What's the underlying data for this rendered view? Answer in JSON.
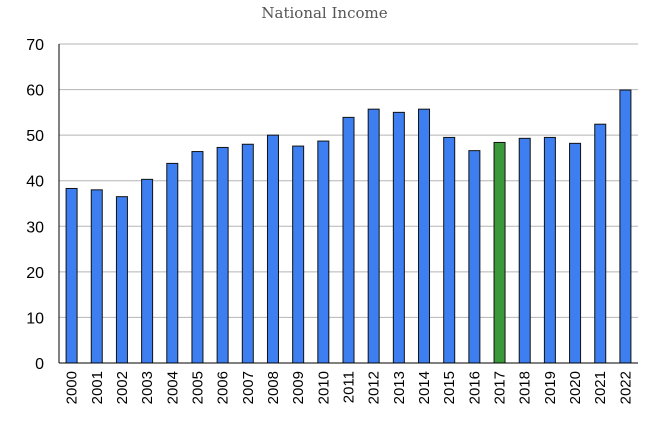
{
  "chart_data": {
    "type": "bar",
    "title": "National Income",
    "xlabel": "",
    "ylabel": "",
    "categories": [
      "2000",
      "2001",
      "2002",
      "2003",
      "2004",
      "2005",
      "2006",
      "2007",
      "2008",
      "2009",
      "2010",
      "2011",
      "2012",
      "2013",
      "2014",
      "2015",
      "2016",
      "2017",
      "2018",
      "2019",
      "2020",
      "2021",
      "2022"
    ],
    "values": [
      38.3,
      38.0,
      36.5,
      40.3,
      43.8,
      46.4,
      47.3,
      48.0,
      50.0,
      47.6,
      48.7,
      53.9,
      55.7,
      55.0,
      55.7,
      49.5,
      46.6,
      48.4,
      49.3,
      49.5,
      48.2,
      52.4,
      59.9
    ],
    "ylim": [
      0,
      70
    ],
    "yticks": [
      0,
      10,
      20,
      30,
      40,
      50,
      60,
      70
    ],
    "grid": true,
    "legend": "none",
    "highlight_category": "2017",
    "colors": {
      "bar": "#3d7ff0",
      "highlight": "#3a9a3a",
      "outline": "#111111",
      "grid": "#b5b5b5"
    }
  }
}
